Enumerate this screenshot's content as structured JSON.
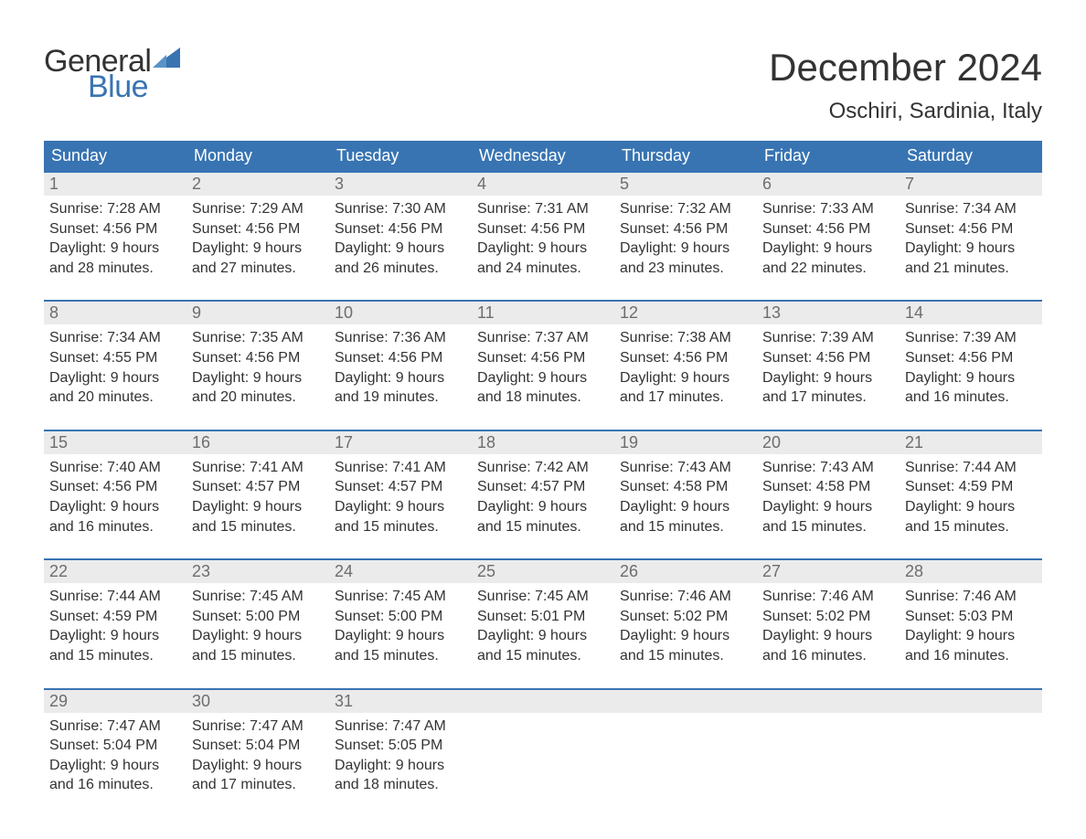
{
  "brand": {
    "part1": "General",
    "part2": "Blue",
    "sail_color": "#3874b2"
  },
  "title": "December 2024",
  "location": "Oschiri, Sardinia, Italy",
  "colors": {
    "header_bg": "#3874b2",
    "header_text": "#ffffff",
    "daynum_bg": "#ebebeb",
    "daynum_text": "#6d6d6d",
    "body_text": "#333333",
    "week_border": "#3874b2",
    "page_bg": "#ffffff"
  },
  "typography": {
    "title_fontsize": 42,
    "location_fontsize": 24,
    "weekday_fontsize": 18,
    "daynum_fontsize": 18,
    "body_fontsize": 16
  },
  "weekdays": [
    "Sunday",
    "Monday",
    "Tuesday",
    "Wednesday",
    "Thursday",
    "Friday",
    "Saturday"
  ],
  "weeks": [
    [
      {
        "num": "1",
        "sunrise": "Sunrise: 7:28 AM",
        "sunset": "Sunset: 4:56 PM",
        "daylight1": "Daylight: 9 hours",
        "daylight2": "and 28 minutes."
      },
      {
        "num": "2",
        "sunrise": "Sunrise: 7:29 AM",
        "sunset": "Sunset: 4:56 PM",
        "daylight1": "Daylight: 9 hours",
        "daylight2": "and 27 minutes."
      },
      {
        "num": "3",
        "sunrise": "Sunrise: 7:30 AM",
        "sunset": "Sunset: 4:56 PM",
        "daylight1": "Daylight: 9 hours",
        "daylight2": "and 26 minutes."
      },
      {
        "num": "4",
        "sunrise": "Sunrise: 7:31 AM",
        "sunset": "Sunset: 4:56 PM",
        "daylight1": "Daylight: 9 hours",
        "daylight2": "and 24 minutes."
      },
      {
        "num": "5",
        "sunrise": "Sunrise: 7:32 AM",
        "sunset": "Sunset: 4:56 PM",
        "daylight1": "Daylight: 9 hours",
        "daylight2": "and 23 minutes."
      },
      {
        "num": "6",
        "sunrise": "Sunrise: 7:33 AM",
        "sunset": "Sunset: 4:56 PM",
        "daylight1": "Daylight: 9 hours",
        "daylight2": "and 22 minutes."
      },
      {
        "num": "7",
        "sunrise": "Sunrise: 7:34 AM",
        "sunset": "Sunset: 4:56 PM",
        "daylight1": "Daylight: 9 hours",
        "daylight2": "and 21 minutes."
      }
    ],
    [
      {
        "num": "8",
        "sunrise": "Sunrise: 7:34 AM",
        "sunset": "Sunset: 4:55 PM",
        "daylight1": "Daylight: 9 hours",
        "daylight2": "and 20 minutes."
      },
      {
        "num": "9",
        "sunrise": "Sunrise: 7:35 AM",
        "sunset": "Sunset: 4:56 PM",
        "daylight1": "Daylight: 9 hours",
        "daylight2": "and 20 minutes."
      },
      {
        "num": "10",
        "sunrise": "Sunrise: 7:36 AM",
        "sunset": "Sunset: 4:56 PM",
        "daylight1": "Daylight: 9 hours",
        "daylight2": "and 19 minutes."
      },
      {
        "num": "11",
        "sunrise": "Sunrise: 7:37 AM",
        "sunset": "Sunset: 4:56 PM",
        "daylight1": "Daylight: 9 hours",
        "daylight2": "and 18 minutes."
      },
      {
        "num": "12",
        "sunrise": "Sunrise: 7:38 AM",
        "sunset": "Sunset: 4:56 PM",
        "daylight1": "Daylight: 9 hours",
        "daylight2": "and 17 minutes."
      },
      {
        "num": "13",
        "sunrise": "Sunrise: 7:39 AM",
        "sunset": "Sunset: 4:56 PM",
        "daylight1": "Daylight: 9 hours",
        "daylight2": "and 17 minutes."
      },
      {
        "num": "14",
        "sunrise": "Sunrise: 7:39 AM",
        "sunset": "Sunset: 4:56 PM",
        "daylight1": "Daylight: 9 hours",
        "daylight2": "and 16 minutes."
      }
    ],
    [
      {
        "num": "15",
        "sunrise": "Sunrise: 7:40 AM",
        "sunset": "Sunset: 4:56 PM",
        "daylight1": "Daylight: 9 hours",
        "daylight2": "and 16 minutes."
      },
      {
        "num": "16",
        "sunrise": "Sunrise: 7:41 AM",
        "sunset": "Sunset: 4:57 PM",
        "daylight1": "Daylight: 9 hours",
        "daylight2": "and 15 minutes."
      },
      {
        "num": "17",
        "sunrise": "Sunrise: 7:41 AM",
        "sunset": "Sunset: 4:57 PM",
        "daylight1": "Daylight: 9 hours",
        "daylight2": "and 15 minutes."
      },
      {
        "num": "18",
        "sunrise": "Sunrise: 7:42 AM",
        "sunset": "Sunset: 4:57 PM",
        "daylight1": "Daylight: 9 hours",
        "daylight2": "and 15 minutes."
      },
      {
        "num": "19",
        "sunrise": "Sunrise: 7:43 AM",
        "sunset": "Sunset: 4:58 PM",
        "daylight1": "Daylight: 9 hours",
        "daylight2": "and 15 minutes."
      },
      {
        "num": "20",
        "sunrise": "Sunrise: 7:43 AM",
        "sunset": "Sunset: 4:58 PM",
        "daylight1": "Daylight: 9 hours",
        "daylight2": "and 15 minutes."
      },
      {
        "num": "21",
        "sunrise": "Sunrise: 7:44 AM",
        "sunset": "Sunset: 4:59 PM",
        "daylight1": "Daylight: 9 hours",
        "daylight2": "and 15 minutes."
      }
    ],
    [
      {
        "num": "22",
        "sunrise": "Sunrise: 7:44 AM",
        "sunset": "Sunset: 4:59 PM",
        "daylight1": "Daylight: 9 hours",
        "daylight2": "and 15 minutes."
      },
      {
        "num": "23",
        "sunrise": "Sunrise: 7:45 AM",
        "sunset": "Sunset: 5:00 PM",
        "daylight1": "Daylight: 9 hours",
        "daylight2": "and 15 minutes."
      },
      {
        "num": "24",
        "sunrise": "Sunrise: 7:45 AM",
        "sunset": "Sunset: 5:00 PM",
        "daylight1": "Daylight: 9 hours",
        "daylight2": "and 15 minutes."
      },
      {
        "num": "25",
        "sunrise": "Sunrise: 7:45 AM",
        "sunset": "Sunset: 5:01 PM",
        "daylight1": "Daylight: 9 hours",
        "daylight2": "and 15 minutes."
      },
      {
        "num": "26",
        "sunrise": "Sunrise: 7:46 AM",
        "sunset": "Sunset: 5:02 PM",
        "daylight1": "Daylight: 9 hours",
        "daylight2": "and 15 minutes."
      },
      {
        "num": "27",
        "sunrise": "Sunrise: 7:46 AM",
        "sunset": "Sunset: 5:02 PM",
        "daylight1": "Daylight: 9 hours",
        "daylight2": "and 16 minutes."
      },
      {
        "num": "28",
        "sunrise": "Sunrise: 7:46 AM",
        "sunset": "Sunset: 5:03 PM",
        "daylight1": "Daylight: 9 hours",
        "daylight2": "and 16 minutes."
      }
    ],
    [
      {
        "num": "29",
        "sunrise": "Sunrise: 7:47 AM",
        "sunset": "Sunset: 5:04 PM",
        "daylight1": "Daylight: 9 hours",
        "daylight2": "and 16 minutes."
      },
      {
        "num": "30",
        "sunrise": "Sunrise: 7:47 AM",
        "sunset": "Sunset: 5:04 PM",
        "daylight1": "Daylight: 9 hours",
        "daylight2": "and 17 minutes."
      },
      {
        "num": "31",
        "sunrise": "Sunrise: 7:47 AM",
        "sunset": "Sunset: 5:05 PM",
        "daylight1": "Daylight: 9 hours",
        "daylight2": "and 18 minutes."
      },
      {
        "empty": true
      },
      {
        "empty": true
      },
      {
        "empty": true
      },
      {
        "empty": true
      }
    ]
  ]
}
